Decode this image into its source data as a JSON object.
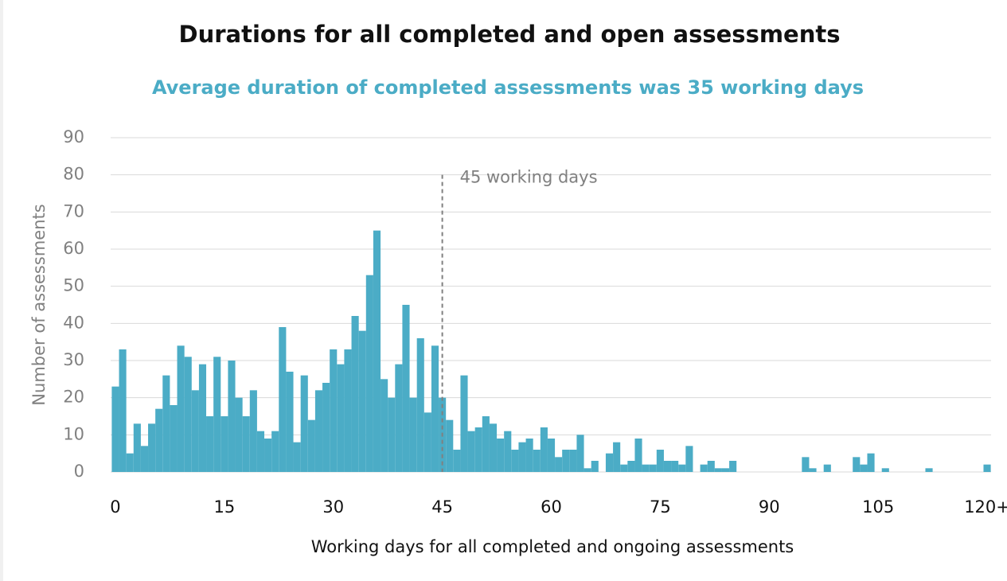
{
  "chart_data": {
    "type": "bar",
    "title": "Durations for all completed and open assessments",
    "subtitle": "Average duration of completed assessments was 35 working days",
    "xlabel": "Working days for all completed and ongoing assessments",
    "ylabel": "Number of assessments",
    "color": "#4bacc6",
    "x": [
      0,
      1,
      2,
      3,
      4,
      5,
      6,
      7,
      8,
      9,
      10,
      11,
      12,
      13,
      14,
      15,
      16,
      17,
      18,
      19,
      20,
      21,
      22,
      23,
      24,
      25,
      26,
      27,
      28,
      29,
      30,
      31,
      32,
      33,
      34,
      35,
      36,
      37,
      38,
      39,
      40,
      41,
      42,
      43,
      44,
      45,
      46,
      47,
      48,
      49,
      50,
      51,
      52,
      53,
      54,
      55,
      56,
      57,
      58,
      59,
      60,
      61,
      62,
      63,
      64,
      65,
      66,
      67,
      68,
      69,
      70,
      71,
      72,
      73,
      74,
      75,
      76,
      77,
      78,
      79,
      80,
      81,
      82,
      83,
      84,
      85,
      86,
      87,
      88,
      89,
      90,
      91,
      92,
      93,
      94,
      95,
      96,
      97,
      98,
      99,
      100,
      101,
      102,
      103,
      104,
      105,
      106,
      107,
      108,
      109,
      110,
      111,
      112,
      113,
      114,
      115,
      116,
      117,
      118,
      119,
      120
    ],
    "values": [
      23,
      33,
      5,
      13,
      7,
      13,
      17,
      26,
      18,
      34,
      31,
      22,
      29,
      15,
      31,
      15,
      30,
      20,
      15,
      22,
      11,
      9,
      11,
      39,
      27,
      8,
      26,
      14,
      22,
      24,
      33,
      29,
      33,
      42,
      38,
      53,
      65,
      25,
      20,
      29,
      45,
      20,
      36,
      16,
      34,
      20,
      14,
      6,
      26,
      11,
      12,
      15,
      13,
      9,
      11,
      6,
      8,
      9,
      6,
      12,
      9,
      4,
      6,
      6,
      10,
      1,
      3,
      0,
      5,
      8,
      2,
      3,
      9,
      2,
      2,
      6,
      3,
      3,
      2,
      7,
      0,
      2,
      3,
      1,
      1,
      3,
      0,
      0,
      0,
      0,
      0,
      0,
      0,
      0,
      0,
      4,
      1,
      0,
      2,
      0,
      0,
      0,
      4,
      2,
      5,
      0,
      1,
      0,
      0,
      0,
      0,
      0,
      1,
      0,
      0,
      0,
      0,
      0,
      0,
      0,
      2
    ],
    "xlim": [
      -0.5,
      120.5
    ],
    "xticks": [
      0,
      15,
      30,
      45,
      60,
      75,
      90,
      105,
      {
        "value": 120,
        "label": "120+"
      }
    ],
    "ylim": [
      0,
      90
    ],
    "yticks": [
      0,
      10,
      20,
      30,
      40,
      50,
      60,
      70,
      80,
      90
    ],
    "grid": true,
    "annotations": [
      {
        "x": 45,
        "y": 80,
        "text": "45 working days"
      }
    ]
  }
}
